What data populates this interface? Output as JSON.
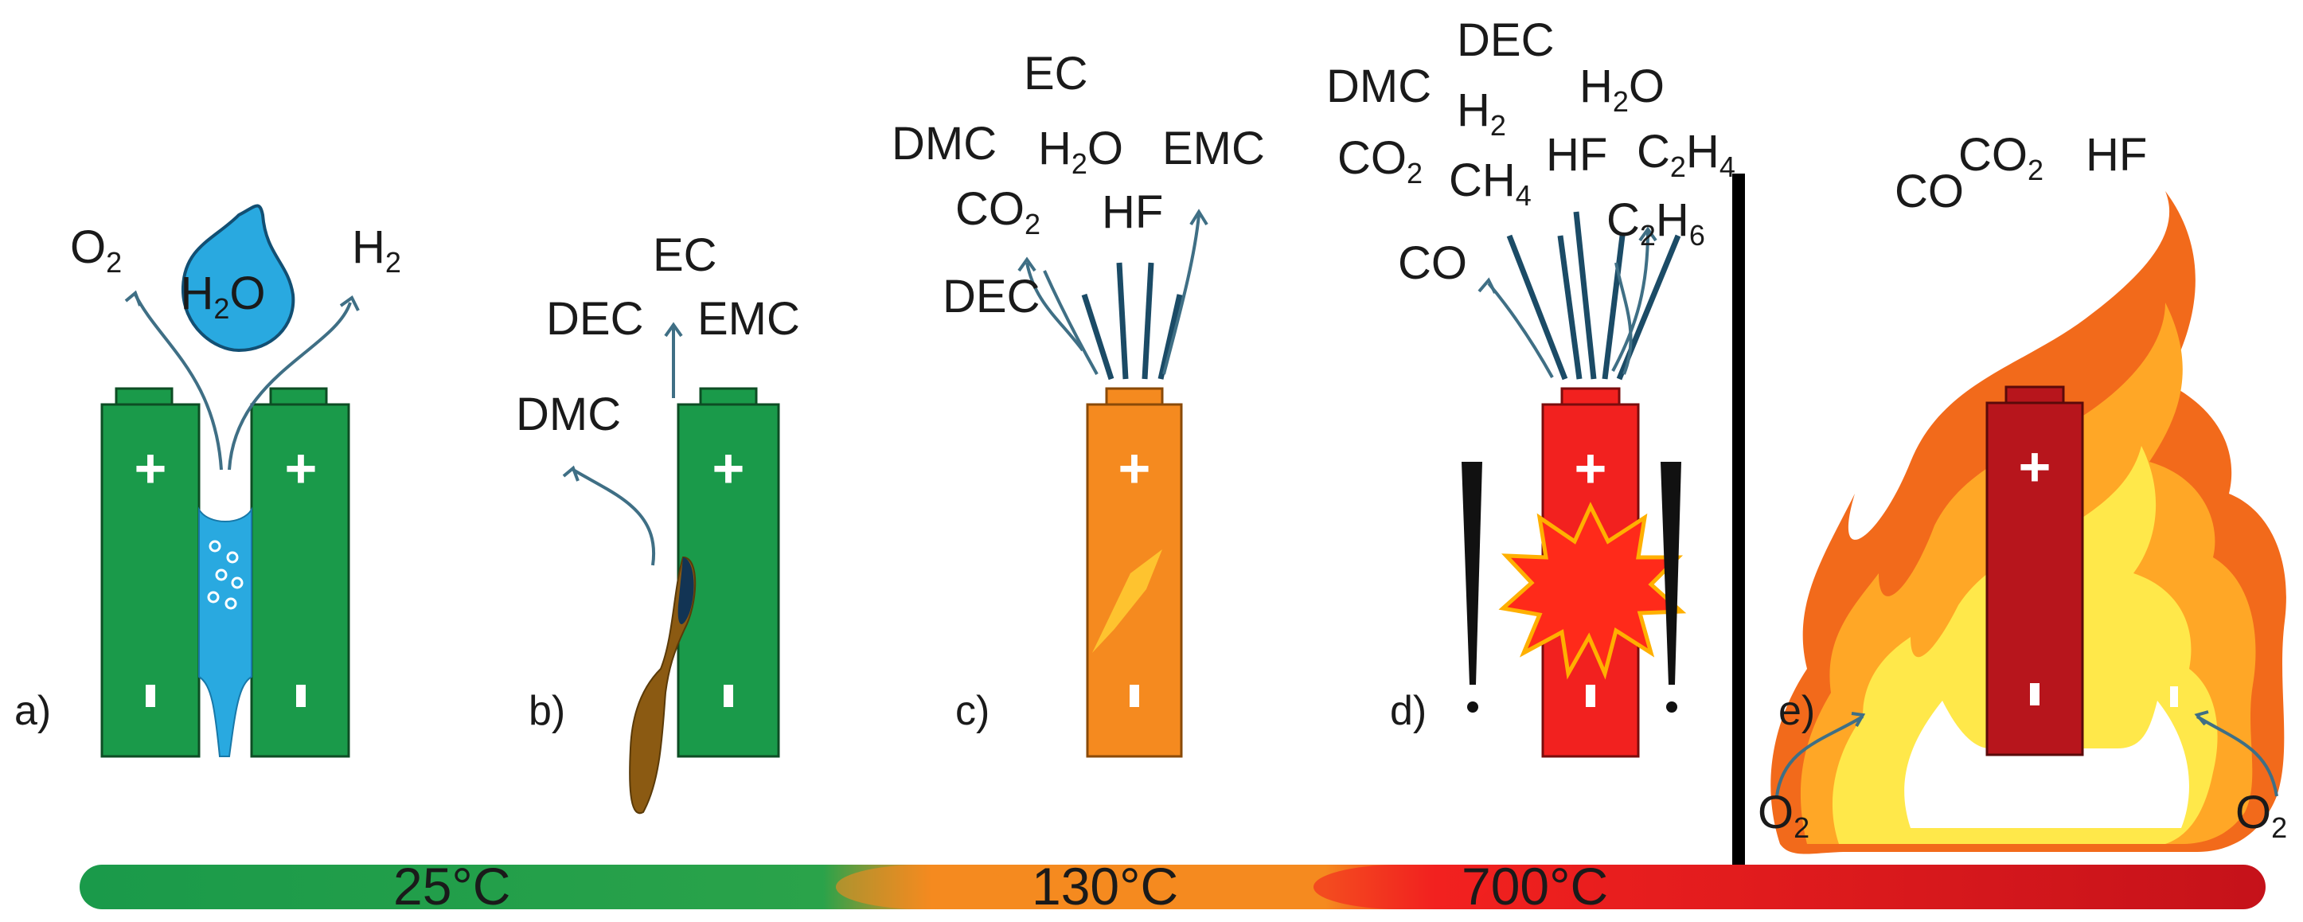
{
  "colors": {
    "green": "#1a9a4a",
    "green_dark": "#116b33",
    "orange": "#f58a1f",
    "red": "#f2211f",
    "dark_red": "#b7151c",
    "water": "#29a9e0",
    "electrolyte": "#8b5a12",
    "flame_outer": "#f26a1b",
    "flame_mid": "#ffa726",
    "flame_inner": "#ffe84a"
  },
  "panels": {
    "a": {
      "label": "a)",
      "gases": {
        "left": "O",
        "left_sub": "2",
        "right": "H",
        "right_sub": "2"
      },
      "droplet": {
        "main": "H",
        "sub": "2",
        "end": "O"
      }
    },
    "b": {
      "label": "b)",
      "solvents": {
        "top": "EC",
        "left": "DEC",
        "right": "EMC",
        "low": "DMC"
      }
    },
    "c": {
      "label": "c)",
      "species": {
        "ec": "EC",
        "dmc": "DMC",
        "h2o_a": "H",
        "h2o_sub": "2",
        "h2o_b": "O",
        "emc": "EMC",
        "co2_a": "CO",
        "co2_sub": "2",
        "hf": "HF",
        "dec": "DEC"
      }
    },
    "d": {
      "label": "d)",
      "species": {
        "dec": "DEC",
        "dmc": "DMC",
        "h2_a": "H",
        "h2_sub": "2",
        "h2o_a": "H",
        "h2o_sub": "2",
        "h2o_b": "O",
        "co2_a": "CO",
        "co2_sub": "2",
        "ch4_a": "CH",
        "ch4_sub": "4",
        "hf": "HF",
        "c2h4_a": "C",
        "c2h4_sub1": "2",
        "c2h4_b": "H",
        "c2h4_sub2": "4",
        "c2h6_a": "C",
        "c2h6_sub1": "2",
        "c2h6_b": "H",
        "c2h6_sub2": "6",
        "co": "CO"
      }
    },
    "e": {
      "label": "e)",
      "species": {
        "co": "CO",
        "co2_a": "CO",
        "co2_sub": "2",
        "hf": "HF",
        "o2_left_a": "O",
        "o2_left_sub": "2",
        "o2_right_a": "O",
        "o2_right_sub": "2"
      }
    }
  },
  "temperature_bar": {
    "t1": "25°C",
    "t2": "130°C",
    "t3": "700°C"
  }
}
